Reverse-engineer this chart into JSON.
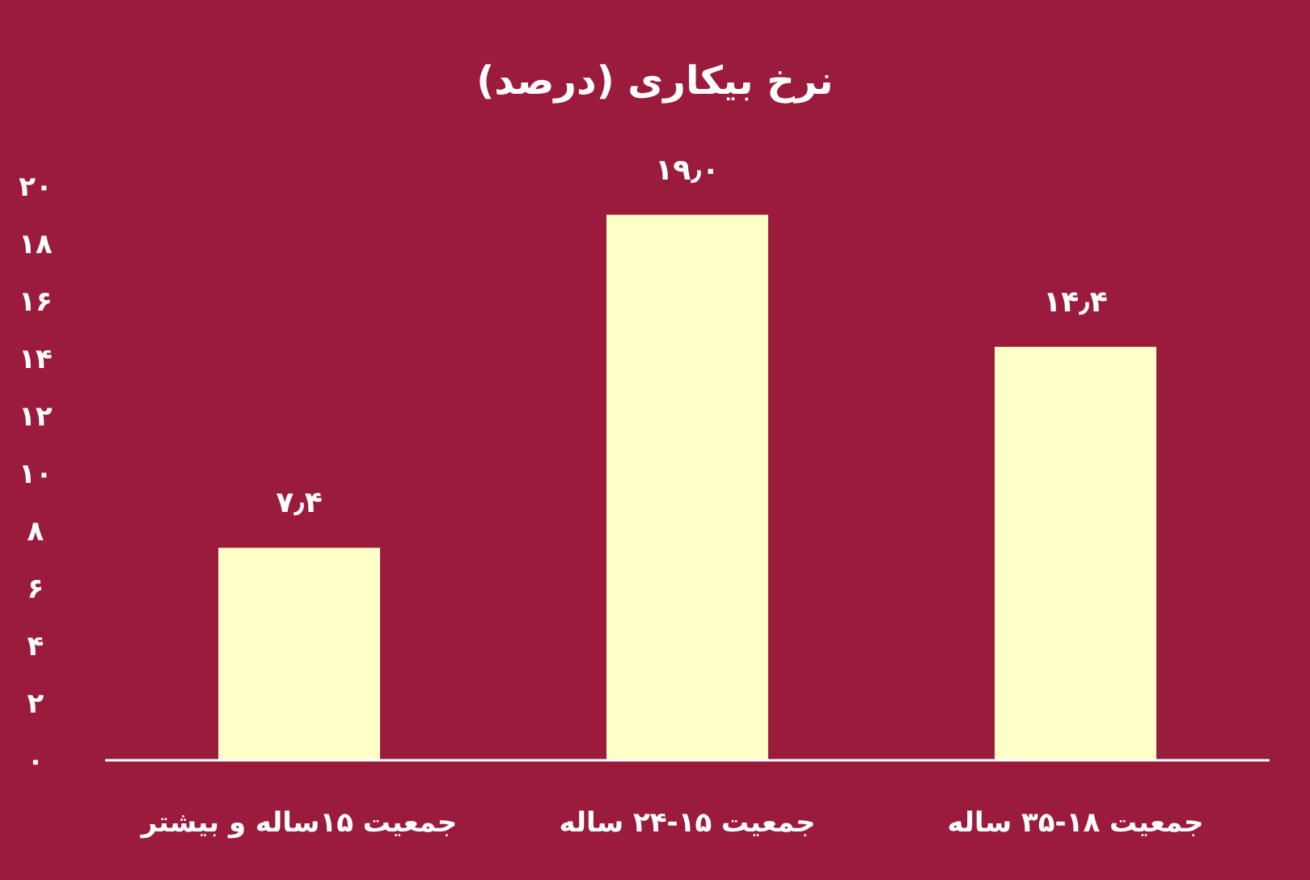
{
  "chart_data": {
    "type": "bar",
    "title": "نرخ بیکاری (درصد)",
    "categories": [
      "جمعیت ۱۵ساله و بیشتر",
      "جمعیت ۱۵-۲۴ ساله",
      "جمعیت ۱۸-۳۵ ساله"
    ],
    "values": [
      7.4,
      19.0,
      14.4
    ],
    "value_labels": [
      "۷٫۴",
      "۱۹٫۰",
      "۱۴٫۴"
    ],
    "color": "#ffffc8",
    "ylim": [
      0,
      20
    ],
    "yticks": [
      {
        "value": 0,
        "label": "۰"
      },
      {
        "value": 2,
        "label": "۲"
      },
      {
        "value": 4,
        "label": "۴"
      },
      {
        "value": 6,
        "label": "۶"
      },
      {
        "value": 8,
        "label": "۸"
      },
      {
        "value": 10,
        "label": "۱۰"
      },
      {
        "value": 12,
        "label": "۱۲"
      },
      {
        "value": 14,
        "label": "۱۴"
      },
      {
        "value": 16,
        "label": "۱۶"
      },
      {
        "value": 18,
        "label": "۱۸"
      },
      {
        "value": 20,
        "label": "۲۰"
      }
    ]
  }
}
